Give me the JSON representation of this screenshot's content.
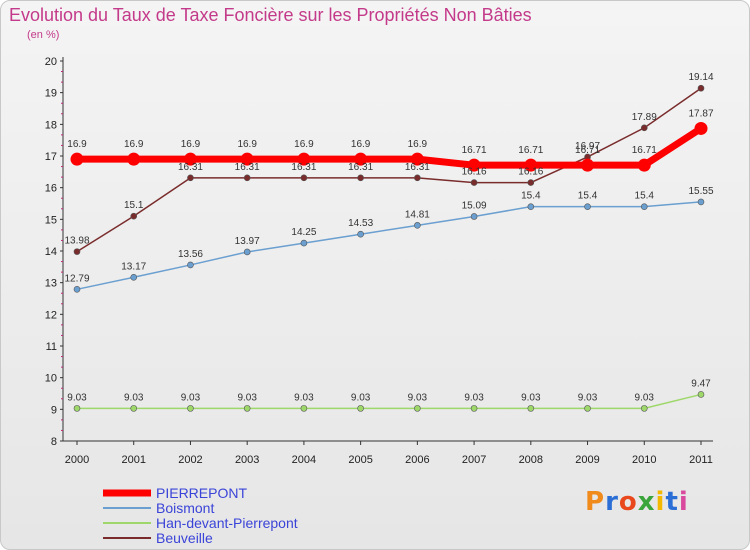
{
  "chart_data": {
    "type": "line",
    "title": "Evolution du Taux de Taxe Foncière sur les Propriétés Non Bâties",
    "ylabel": "(en %)",
    "xlabel": "",
    "ylim": [
      8,
      20
    ],
    "yticks": [
      "8",
      "9",
      "10",
      "11",
      "12",
      "13",
      "14",
      "15",
      "16",
      "17",
      "18",
      "19",
      "20"
    ],
    "categories": [
      "2000",
      "2001",
      "2002",
      "2003",
      "2004",
      "2005",
      "2006",
      "2007",
      "2008",
      "2009",
      "2010",
      "2011"
    ],
    "series": [
      {
        "name": "PIERREPONT",
        "color": "#ff0000",
        "values": [
          16.9,
          16.9,
          16.9,
          16.9,
          16.9,
          16.9,
          16.9,
          16.71,
          16.71,
          16.71,
          16.71,
          17.87
        ],
        "labels": [
          "16.9",
          "16.9",
          "16.9",
          "16.9",
          "16.9",
          "16.9",
          "16.9",
          "16.71",
          "16.71",
          "16.71",
          "16.71",
          "17.87"
        ]
      },
      {
        "name": "Boismont",
        "color": "#6a9fd0",
        "values": [
          12.79,
          13.17,
          13.56,
          13.97,
          14.25,
          14.53,
          14.81,
          15.09,
          15.4,
          15.4,
          15.4,
          15.55
        ],
        "labels": [
          "12.79",
          "13.17",
          "13.56",
          "13.97",
          "14.25",
          "14.53",
          "14.81",
          "15.09",
          "15.4",
          "15.4",
          "15.4",
          "15.55"
        ]
      },
      {
        "name": "Han-devant-Pierrepont",
        "color": "#9ed86a",
        "values": [
          9.03,
          9.03,
          9.03,
          9.03,
          9.03,
          9.03,
          9.03,
          9.03,
          9.03,
          9.03,
          9.03,
          9.47
        ],
        "labels": [
          "9.03",
          "9.03",
          "9.03",
          "9.03",
          "9.03",
          "9.03",
          "9.03",
          "9.03",
          "9.03",
          "9.03",
          "9.03",
          "9.47"
        ]
      },
      {
        "name": "Beuveille",
        "color": "#7a2c2c",
        "values": [
          13.98,
          15.1,
          16.31,
          16.31,
          16.31,
          16.31,
          16.31,
          16.16,
          16.16,
          16.97,
          17.89,
          19.14
        ],
        "labels": [
          "13.98",
          "15.1",
          "16.31",
          "16.31",
          "16.31",
          "16.31",
          "16.31",
          "16.16",
          "16.16",
          "16.97",
          "17.89",
          "19.14"
        ]
      }
    ],
    "legend_position": "bottom-left",
    "grid": false
  },
  "brand": {
    "logo_letters": [
      "P",
      "r",
      "o",
      "x",
      "i",
      "t",
      "i"
    ],
    "logo_colors": [
      "#f08a1a",
      "#2b6fd6",
      "#e8481c",
      "#3aa53a",
      "#f5b800",
      "#2b6fd6",
      "#d94a9e"
    ]
  }
}
